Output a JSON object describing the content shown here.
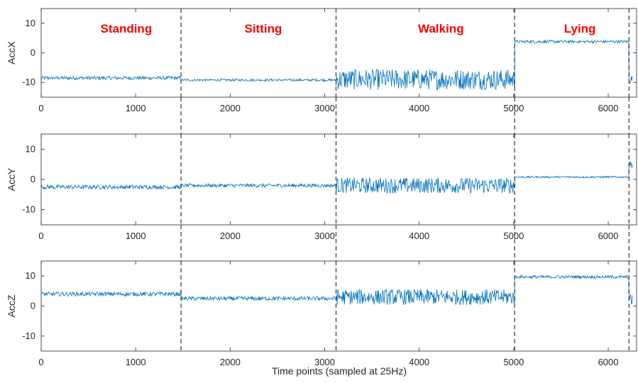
{
  "chart_data": {
    "type": "line",
    "xlabel": "Time points (sampled at 25Hz)",
    "xlim": [
      0,
      6300
    ],
    "xticks": [
      0,
      1000,
      2000,
      3000,
      4000,
      5000,
      6000
    ],
    "ylim": [
      -15,
      15
    ],
    "yticks": [
      -10,
      0,
      10
    ],
    "grid": false,
    "line_color": "#0072BD",
    "label_color": "#FF0000",
    "boundaries": [
      1480,
      3120,
      5010,
      6220
    ],
    "activities": [
      {
        "label": "Standing",
        "x_center": 900
      },
      {
        "label": "Sitting",
        "x_center": 2350
      },
      {
        "label": "Walking",
        "x_center": 4230
      },
      {
        "label": "Lying",
        "x_center": 5700
      }
    ],
    "series": [
      {
        "name": "AccX",
        "segments": [
          {
            "x0": 0,
            "x1": 1480,
            "mean": -8.5,
            "noise": 0.6
          },
          {
            "x0": 1480,
            "x1": 3120,
            "mean": -9.2,
            "noise": 0.4
          },
          {
            "x0": 3120,
            "x1": 5010,
            "mean": -9.0,
            "noise": 3.5
          },
          {
            "x0": 5010,
            "x1": 6220,
            "mean": 3.8,
            "noise": 0.5
          },
          {
            "x0": 6220,
            "x1": 6260,
            "mean": -9.0,
            "noise": 1.5
          }
        ]
      },
      {
        "name": "AccY",
        "segments": [
          {
            "x0": 0,
            "x1": 1480,
            "mean": -2.5,
            "noise": 0.7
          },
          {
            "x0": 1480,
            "x1": 3120,
            "mean": -2.0,
            "noise": 0.6
          },
          {
            "x0": 3120,
            "x1": 5010,
            "mean": -2.0,
            "noise": 2.6
          },
          {
            "x0": 5010,
            "x1": 6220,
            "mean": 0.8,
            "noise": 0.3
          },
          {
            "x0": 6220,
            "x1": 6260,
            "mean": 5.0,
            "noise": 1.2
          }
        ]
      },
      {
        "name": "AccZ",
        "segments": [
          {
            "x0": 0,
            "x1": 1480,
            "mean": 4.0,
            "noise": 0.7
          },
          {
            "x0": 1480,
            "x1": 3120,
            "mean": 2.5,
            "noise": 0.7
          },
          {
            "x0": 3120,
            "x1": 5010,
            "mean": 3.0,
            "noise": 2.6
          },
          {
            "x0": 5010,
            "x1": 6220,
            "mean": 9.7,
            "noise": 0.5
          },
          {
            "x0": 6220,
            "x1": 6260,
            "mean": 2.0,
            "noise": 2.0
          }
        ]
      }
    ]
  }
}
